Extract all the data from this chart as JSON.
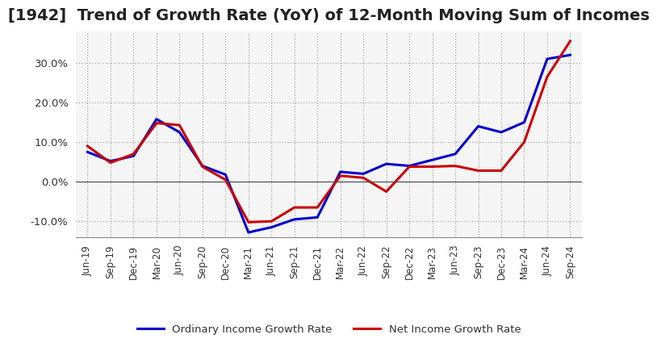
{
  "title": "[1942]  Trend of Growth Rate (YoY) of 12-Month Moving Sum of Incomes",
  "title_fontsize": 14,
  "ylim": [
    -0.14,
    0.38
  ],
  "yticks": [
    -0.1,
    0.0,
    0.1,
    0.2,
    0.3
  ],
  "background_color": "#ffffff",
  "plot_bg_color": "#f5f5f5",
  "grid_color": "#aaaaaa",
  "ordinary_color": "#0000cc",
  "net_color": "#cc0000",
  "legend_labels": [
    "Ordinary Income Growth Rate",
    "Net Income Growth Rate"
  ],
  "x_labels": [
    "Jun-19",
    "Sep-19",
    "Dec-19",
    "Mar-20",
    "Jun-20",
    "Sep-20",
    "Dec-20",
    "Mar-21",
    "Jun-21",
    "Sep-21",
    "Dec-21",
    "Mar-22",
    "Jun-22",
    "Sep-22",
    "Dec-22",
    "Mar-23",
    "Jun-23",
    "Sep-23",
    "Dec-23",
    "Mar-24",
    "Jun-24",
    "Sep-24"
  ],
  "ordinary_income_growth": [
    0.075,
    0.052,
    0.065,
    0.158,
    0.125,
    0.04,
    0.018,
    -0.128,
    -0.115,
    -0.095,
    -0.09,
    0.025,
    0.02,
    0.045,
    0.04,
    0.055,
    0.07,
    0.14,
    0.125,
    0.15,
    0.31,
    0.32
  ],
  "net_income_growth": [
    0.09,
    0.048,
    0.07,
    0.148,
    0.143,
    0.038,
    0.005,
    -0.102,
    -0.1,
    -0.065,
    -0.065,
    0.015,
    0.01,
    -0.025,
    0.038,
    0.038,
    0.04,
    0.028,
    0.028,
    0.1,
    0.265,
    0.355
  ]
}
